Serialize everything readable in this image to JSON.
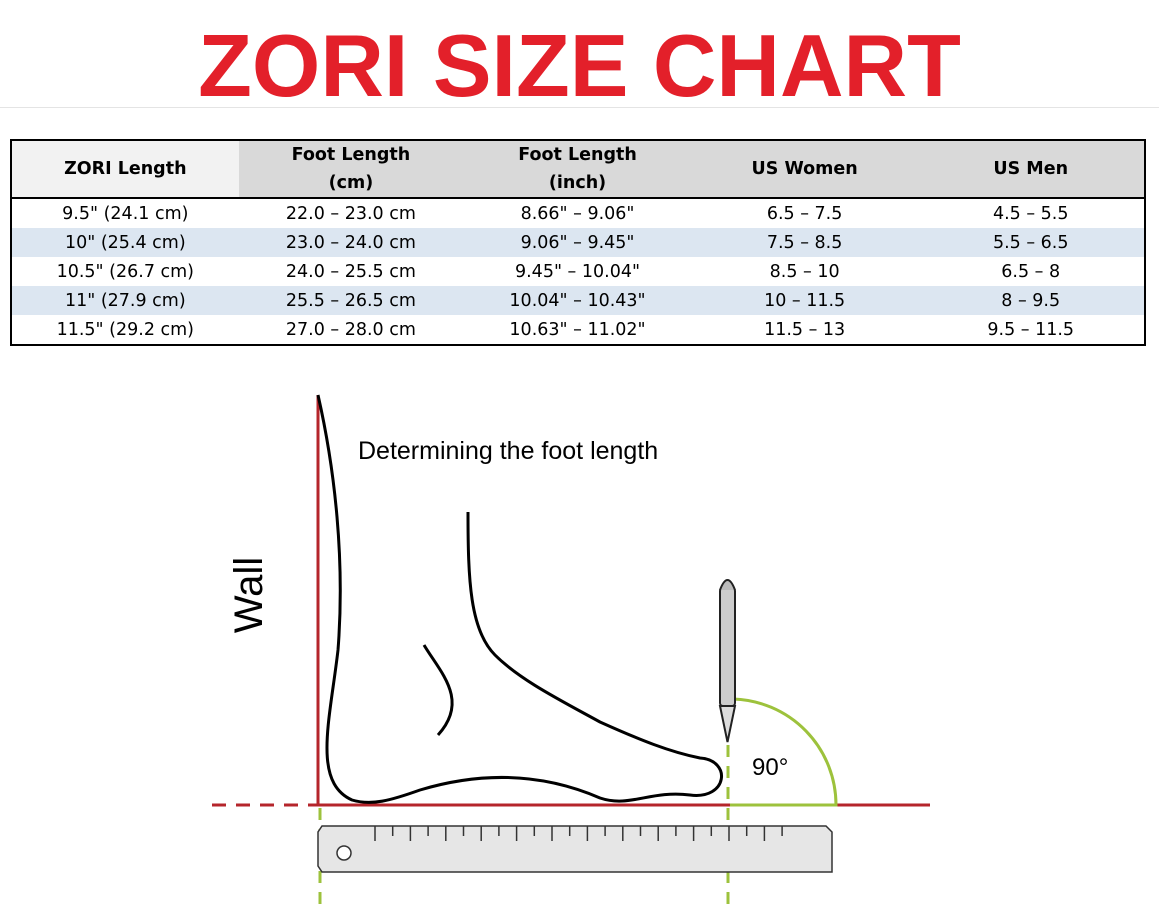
{
  "header": {
    "title": "ZORI SIZE CHART"
  },
  "table": {
    "columns": [
      [
        "ZORI Length"
      ],
      [
        "Foot Length",
        "(cm)"
      ],
      [
        "Foot Length",
        "(inch)"
      ],
      [
        "US Women"
      ],
      [
        "US Men"
      ]
    ],
    "rows": [
      [
        "9.5\" (24.1 cm)",
        "22.0 – 23.0 cm",
        "8.66\" – 9.06\"",
        "6.5 – 7.5",
        "4.5 – 5.5"
      ],
      [
        "10\" (25.4 cm)",
        "23.0 – 24.0 cm",
        "9.06\" – 9.45\"",
        "7.5 – 8.5",
        "5.5 – 6.5"
      ],
      [
        "10.5\" (26.7 cm)",
        "24.0 – 25.5 cm",
        "9.45\" – 10.04\"",
        "8.5 – 10",
        "6.5 – 8"
      ],
      [
        "11\" (27.9 cm)",
        "25.5 – 26.5 cm",
        "10.04\" – 10.43\"",
        "10 – 11.5",
        "8 – 9.5"
      ],
      [
        "11.5\" (29.2 cm)",
        "27.0 – 28.0 cm",
        "10.63\" – 11.02\"",
        "11.5 – 13",
        "9.5 – 11.5"
      ]
    ]
  },
  "diagram": {
    "caption": "Determining the foot length",
    "wall_label": "Wall",
    "angle_label": "90°"
  }
}
